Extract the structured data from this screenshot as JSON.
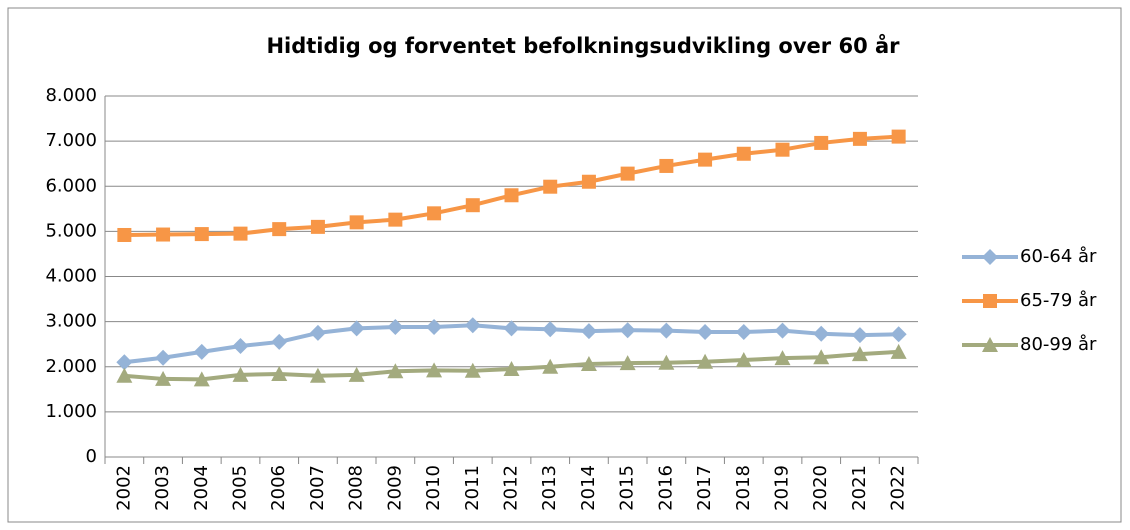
{
  "chart_data": {
    "type": "line",
    "title": "Hidtidig og forventet befolkningsudvikling over 60 år",
    "categories": [
      "2002",
      "2003",
      "2004",
      "2005",
      "2006",
      "2007",
      "2008",
      "2009",
      "2010",
      "2011",
      "2012",
      "2013",
      "2014",
      "2015",
      "2016",
      "2017",
      "2018",
      "2019",
      "2020",
      "2021",
      "2022"
    ],
    "series": [
      {
        "name": "60-64 år",
        "color": "#95b3d7",
        "marker": "diamond",
        "values": [
          2100,
          2200,
          2330,
          2460,
          2550,
          2750,
          2850,
          2880,
          2880,
          2920,
          2850,
          2830,
          2790,
          2810,
          2800,
          2770,
          2770,
          2800,
          2730,
          2700,
          2720
        ]
      },
      {
        "name": "65-79 år",
        "color": "#f79646",
        "marker": "square",
        "values": [
          4920,
          4930,
          4940,
          4950,
          5050,
          5100,
          5200,
          5260,
          5400,
          5580,
          5800,
          5990,
          6100,
          6280,
          6450,
          6590,
          6720,
          6810,
          6960,
          7050,
          7100
        ]
      },
      {
        "name": "80-99 år",
        "color": "#a3aa7e",
        "marker": "triangle",
        "values": [
          1800,
          1730,
          1720,
          1820,
          1840,
          1800,
          1820,
          1900,
          1920,
          1910,
          1950,
          2000,
          2060,
          2080,
          2090,
          2110,
          2150,
          2190,
          2210,
          2280,
          2330
        ]
      }
    ],
    "ylim": [
      0,
      8000
    ],
    "yticks": [
      0,
      {
        "value": 1000,
        "label": "1.000"
      },
      {
        "value": 2000,
        "label": "2.000"
      },
      {
        "value": 3000,
        "label": "3.000"
      },
      {
        "value": 4000,
        "label": "4.000"
      },
      {
        "value": 5000,
        "label": "5.000"
      },
      {
        "value": 6000,
        "label": "6.000"
      },
      {
        "value": 7000,
        "label": "7.000"
      },
      {
        "value": 8000,
        "label": "8.000"
      }
    ],
    "grid": true,
    "legend": "right"
  }
}
